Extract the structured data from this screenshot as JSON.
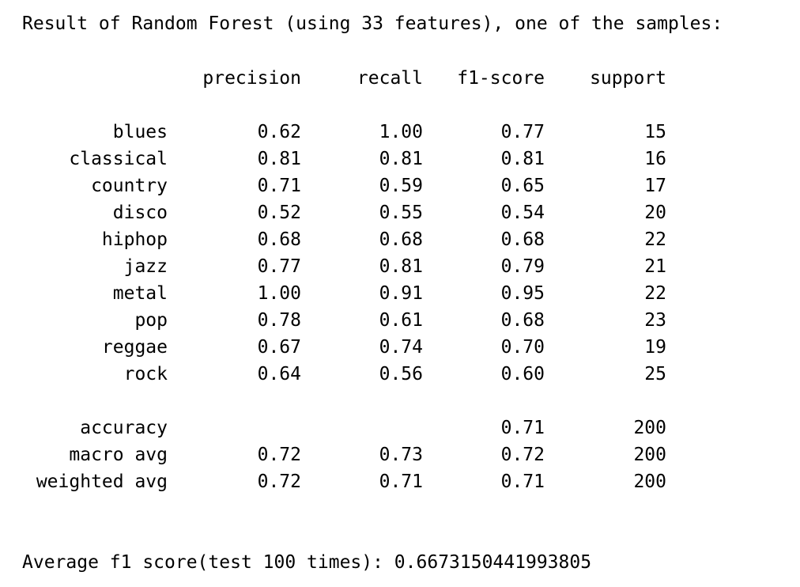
{
  "header": "Result of Random Forest (using 33 features), one of the samples:",
  "columns": {
    "precision": "precision",
    "recall": "recall",
    "f1": "f1-score",
    "support": "support"
  },
  "rows": [
    {
      "label": "blues",
      "precision": "0.62",
      "recall": "1.00",
      "f1": "0.77",
      "support": "15"
    },
    {
      "label": "classical",
      "precision": "0.81",
      "recall": "0.81",
      "f1": "0.81",
      "support": "16"
    },
    {
      "label": "country",
      "precision": "0.71",
      "recall": "0.59",
      "f1": "0.65",
      "support": "17"
    },
    {
      "label": "disco",
      "precision": "0.52",
      "recall": "0.55",
      "f1": "0.54",
      "support": "20"
    },
    {
      "label": "hiphop",
      "precision": "0.68",
      "recall": "0.68",
      "f1": "0.68",
      "support": "22"
    },
    {
      "label": "jazz",
      "precision": "0.77",
      "recall": "0.81",
      "f1": "0.79",
      "support": "21"
    },
    {
      "label": "metal",
      "precision": "1.00",
      "recall": "0.91",
      "f1": "0.95",
      "support": "22"
    },
    {
      "label": "pop",
      "precision": "0.78",
      "recall": "0.61",
      "f1": "0.68",
      "support": "23"
    },
    {
      "label": "reggae",
      "precision": "0.67",
      "recall": "0.74",
      "f1": "0.70",
      "support": "19"
    },
    {
      "label": "rock",
      "precision": "0.64",
      "recall": "0.56",
      "f1": "0.60",
      "support": "25"
    }
  ],
  "summary": [
    {
      "label": "accuracy",
      "precision": "",
      "recall": "",
      "f1": "0.71",
      "support": "200"
    },
    {
      "label": "macro avg",
      "precision": "0.72",
      "recall": "0.73",
      "f1": "0.72",
      "support": "200"
    },
    {
      "label": "weighted avg",
      "precision": "0.72",
      "recall": "0.71",
      "f1": "0.71",
      "support": "200"
    }
  ],
  "footer": "Average f1 score(test 100 times): 0.6673150441993805"
}
